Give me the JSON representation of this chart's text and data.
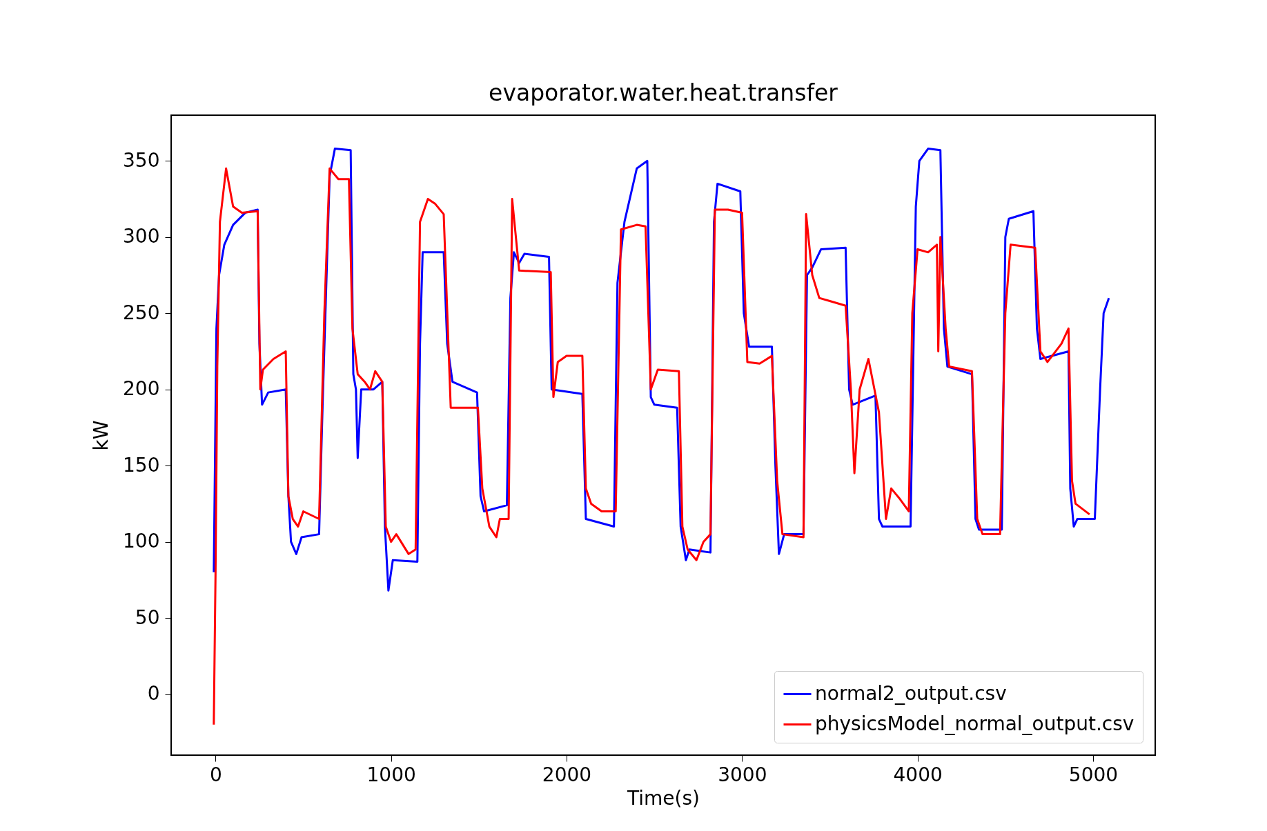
{
  "chart_data": {
    "type": "line",
    "title": "evaporator.water.heat.transfer",
    "xlabel": "Time(s)",
    "ylabel": "kW",
    "xlim": [
      -253,
      5354
    ],
    "ylim": [
      -40,
      380
    ],
    "xticks": [
      0,
      1000,
      2000,
      3000,
      4000,
      5000
    ],
    "yticks": [
      0,
      50,
      100,
      150,
      200,
      250,
      300,
      350
    ],
    "grid": false,
    "legend": "bottom right",
    "series": [
      {
        "name": "normal2_output.csv",
        "color": "#0000ff",
        "x": [
          -10,
          5,
          20,
          50,
          100,
          170,
          240,
          250,
          265,
          300,
          400,
          415,
          430,
          460,
          490,
          590,
          610,
          650,
          680,
          770,
          785,
          800,
          810,
          830,
          900,
          950,
          965,
          985,
          1010,
          1150,
          1165,
          1180,
          1300,
          1320,
          1350,
          1490,
          1510,
          1530,
          1660,
          1680,
          1700,
          1730,
          1760,
          1900,
          1915,
          2090,
          2110,
          2270,
          2290,
          2330,
          2400,
          2460,
          2480,
          2500,
          2630,
          2650,
          2680,
          2700,
          2820,
          2840,
          2860,
          2990,
          3010,
          3040,
          3170,
          3190,
          3210,
          3240,
          3350,
          3370,
          3400,
          3450,
          3590,
          3610,
          3630,
          3760,
          3780,
          3800,
          3960,
          3990,
          4010,
          4060,
          4130,
          4150,
          4170,
          4310,
          4330,
          4350,
          4480,
          4500,
          4520,
          4660,
          4680,
          4700,
          4860,
          4870,
          4890,
          4910,
          5010,
          5040,
          5060,
          5090
        ],
        "values": [
          80,
          240,
          275,
          295,
          308,
          316,
          318,
          230,
          190,
          198,
          200,
          130,
          100,
          92,
          103,
          105,
          190,
          340,
          358,
          357,
          210,
          200,
          155,
          200,
          200,
          205,
          110,
          68,
          88,
          87,
          230,
          290,
          290,
          230,
          205,
          198,
          130,
          120,
          124,
          260,
          290,
          283,
          289,
          287,
          200,
          197,
          115,
          110,
          270,
          310,
          345,
          350,
          195,
          190,
          188,
          110,
          88,
          95,
          93,
          310,
          335,
          330,
          250,
          228,
          228,
          150,
          92,
          105,
          105,
          275,
          280,
          292,
          293,
          200,
          190,
          196,
          115,
          110,
          110,
          320,
          350,
          358,
          357,
          240,
          215,
          210,
          115,
          108,
          108,
          300,
          312,
          317,
          240,
          220,
          225,
          135,
          110,
          115,
          115,
          200,
          250,
          260
        ]
      },
      {
        "name": "physicsModel_normal_output.csv",
        "color": "#ff0000",
        "x": [
          -10,
          0,
          10,
          25,
          60,
          100,
          150,
          240,
          255,
          270,
          330,
          400,
          415,
          440,
          470,
          500,
          590,
          620,
          650,
          700,
          760,
          780,
          810,
          850,
          880,
          910,
          950,
          970,
          1000,
          1030,
          1100,
          1140,
          1165,
          1210,
          1250,
          1300,
          1340,
          1495,
          1520,
          1560,
          1600,
          1620,
          1670,
          1690,
          1730,
          1910,
          1925,
          1950,
          2000,
          2090,
          2110,
          2140,
          2200,
          2280,
          2310,
          2400,
          2450,
          2480,
          2520,
          2640,
          2660,
          2690,
          2740,
          2780,
          2820,
          2845,
          2920,
          3000,
          3030,
          3100,
          3170,
          3200,
          3230,
          3350,
          3365,
          3400,
          3440,
          3500,
          3590,
          3620,
          3640,
          3670,
          3720,
          3780,
          3820,
          3850,
          3900,
          3950,
          3970,
          4000,
          4060,
          4110,
          4118,
          4130,
          4160,
          4180,
          4310,
          4340,
          4370,
          4470,
          4500,
          4530,
          4670,
          4700,
          4740,
          4820,
          4860,
          4880,
          4900,
          4980
        ],
        "values": [
          -20,
          80,
          215,
          310,
          345,
          320,
          316,
          317,
          200,
          213,
          220,
          225,
          130,
          115,
          110,
          120,
          115,
          250,
          345,
          338,
          338,
          240,
          210,
          205,
          200,
          212,
          205,
          110,
          100,
          105,
          92,
          95,
          310,
          325,
          322,
          315,
          188,
          188,
          135,
          110,
          103,
          115,
          115,
          325,
          278,
          277,
          195,
          218,
          222,
          222,
          135,
          125,
          120,
          120,
          305,
          308,
          307,
          200,
          213,
          212,
          110,
          95,
          88,
          100,
          105,
          318,
          318,
          316,
          218,
          217,
          222,
          140,
          105,
          103,
          315,
          275,
          260,
          258,
          255,
          200,
          145,
          200,
          220,
          185,
          115,
          135,
          128,
          120,
          250,
          292,
          290,
          295,
          225,
          300,
          240,
          215,
          212,
          115,
          105,
          105,
          250,
          295,
          293,
          225,
          218,
          230,
          240,
          140,
          125,
          118
        ]
      }
    ]
  }
}
